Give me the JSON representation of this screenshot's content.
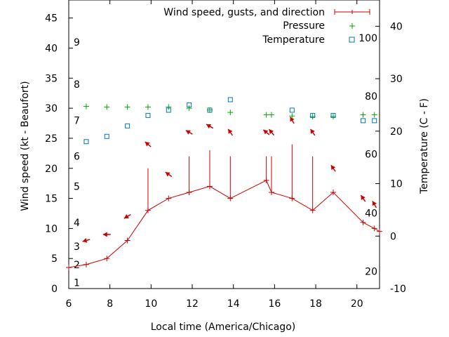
{
  "chart_data": {
    "type": "line",
    "xlabel": "Local time (America/Chicago)",
    "ylabel_left": "Wind speed (kt - Beaufort)",
    "ylabel_right": "Temperature (C - F)",
    "xlim": [
      6,
      21.1
    ],
    "ylim_left": [
      0,
      48
    ],
    "ylim_right": [
      -10,
      45
    ],
    "x_ticks": [
      6,
      8,
      10,
      12,
      14,
      16,
      18,
      20
    ],
    "y_left_ticks": [
      0,
      5,
      10,
      15,
      20,
      25,
      30,
      35,
      40,
      45
    ],
    "y_right_ticks": [
      -10,
      0,
      10,
      20,
      30,
      40
    ],
    "beaufort_labels": [
      {
        "text": "1",
        "kt": 1
      },
      {
        "text": "2",
        "kt": 4
      },
      {
        "text": "3",
        "kt": 7
      },
      {
        "text": "4",
        "kt": 11
      },
      {
        "text": "5",
        "kt": 17
      },
      {
        "text": "6",
        "kt": 22
      },
      {
        "text": "7",
        "kt": 28
      },
      {
        "text": "8",
        "kt": 34
      },
      {
        "text": "9",
        "kt": 41
      }
    ],
    "fahrenheit_labels": [
      {
        "text": "20",
        "c": -6.7
      },
      {
        "text": "40",
        "c": 4.4
      },
      {
        "text": "60",
        "c": 15.6
      },
      {
        "text": "80",
        "c": 26.7
      },
      {
        "text": "100",
        "c": 37.8
      }
    ],
    "legend": [
      {
        "label": "Wind speed, gusts, and direction",
        "color": "#cc0000",
        "marker": "line-plus"
      },
      {
        "label": "Pressure",
        "color": "#00aa00",
        "marker": "plus"
      },
      {
        "label": "Temperature",
        "color": "#0077bb",
        "marker": "square"
      }
    ],
    "series": [
      {
        "name": "Wind speed",
        "color": "#cc0000",
        "x": [
          6,
          6.85,
          7.85,
          8.85,
          9.85,
          10.85,
          11.85,
          12.85,
          13.85,
          15.6,
          15.85,
          16.85,
          17.85,
          18.85,
          20.3,
          20.85,
          21.1
        ],
        "y": [
          3.5,
          4,
          5,
          8,
          13,
          15,
          16,
          17,
          15,
          18,
          16,
          15,
          13,
          16,
          11,
          10,
          9.5
        ]
      },
      {
        "name": "Gusts",
        "color": "#cc0000",
        "points": [
          {
            "x": 9.85,
            "base": 13,
            "gust": 20
          },
          {
            "x": 11.85,
            "base": 16,
            "gust": 22
          },
          {
            "x": 12.85,
            "base": 17,
            "gust": 23
          },
          {
            "x": 13.85,
            "base": 15,
            "gust": 22
          },
          {
            "x": 15.6,
            "base": 18,
            "gust": 22
          },
          {
            "x": 15.85,
            "base": 16,
            "gust": 22
          },
          {
            "x": 16.85,
            "base": 15,
            "gust": 24
          },
          {
            "x": 17.85,
            "base": 13,
            "gust": 22
          }
        ]
      },
      {
        "name": "Direction",
        "color": "#cc0000",
        "arrows": [
          {
            "x": 6.85,
            "y": 8,
            "angle": 195
          },
          {
            "x": 7.85,
            "y": 9,
            "angle": 180
          },
          {
            "x": 8.85,
            "y": 12,
            "angle": 210
          },
          {
            "x": 9.85,
            "y": 24,
            "angle": 140
          },
          {
            "x": 10.85,
            "y": 19,
            "angle": 145
          },
          {
            "x": 11.85,
            "y": 26,
            "angle": 150
          },
          {
            "x": 12.85,
            "y": 27,
            "angle": 150
          },
          {
            "x": 13.85,
            "y": 26,
            "angle": 125
          },
          {
            "x": 15.6,
            "y": 26,
            "angle": 140
          },
          {
            "x": 15.85,
            "y": 26,
            "angle": 130
          },
          {
            "x": 16.85,
            "y": 28,
            "angle": 120
          },
          {
            "x": 17.85,
            "y": 26,
            "angle": 125
          },
          {
            "x": 18.85,
            "y": 20,
            "angle": 125
          },
          {
            "x": 20.3,
            "y": 15,
            "angle": 125
          },
          {
            "x": 20.85,
            "y": 14,
            "angle": 120
          }
        ]
      },
      {
        "name": "Pressure",
        "color": "#00aa00",
        "x": [
          6.85,
          7.85,
          8.85,
          9.85,
          10.85,
          11.85,
          12.85,
          13.85,
          15.6,
          15.85,
          16.85,
          17.85,
          18.85,
          20.3,
          20.85
        ],
        "y": [
          30.3,
          30.2,
          30.2,
          30.2,
          30.2,
          30.0,
          29.7,
          29.3,
          28.9,
          28.9,
          28.7,
          28.6,
          28.6,
          28.9,
          28.9
        ]
      },
      {
        "name": "Temperature",
        "color": "#0077bb",
        "x": [
          6.85,
          7.85,
          8.85,
          9.85,
          10.85,
          11.85,
          12.85,
          13.85,
          16.85,
          17.85,
          18.85,
          20.3,
          20.85
        ],
        "y_celsius": [
          18,
          19,
          21,
          23,
          24,
          25,
          24,
          26,
          24,
          23,
          23,
          22,
          22
        ]
      }
    ]
  }
}
